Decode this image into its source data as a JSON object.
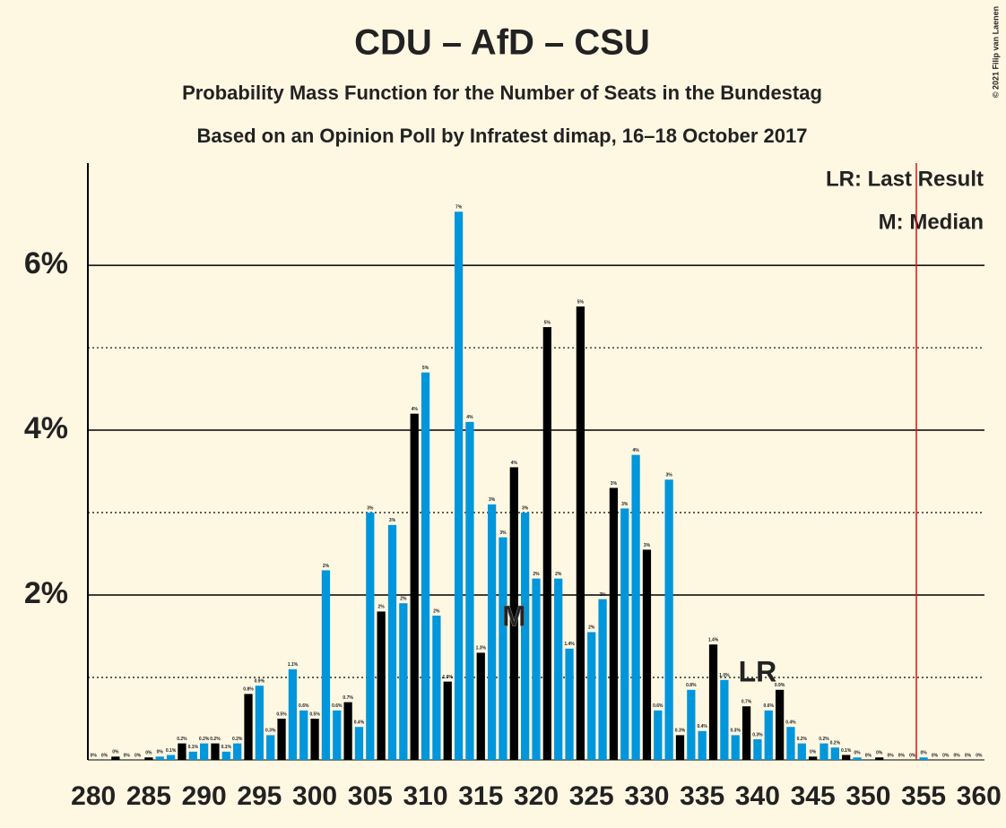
{
  "chart_data": {
    "type": "bar",
    "title": "CDU – AfD – CSU",
    "subtitle": "Probability Mass Function for the Number of Seats in the Bundestag",
    "subtitle2": "Based on an Opinion Poll by Infratest dimap, 16–18 October 2017",
    "copyright": "© 2021 Filip van Laenen",
    "legend_lines": [
      "LR: Last Result",
      "M: Median"
    ],
    "annotations": [
      {
        "text": "M",
        "x": 318
      },
      {
        "text": "LR",
        "x": 340
      }
    ],
    "x": [
      280,
      281,
      282,
      283,
      284,
      285,
      286,
      287,
      288,
      289,
      290,
      291,
      292,
      293,
      294,
      295,
      296,
      297,
      298,
      299,
      300,
      301,
      302,
      303,
      304,
      305,
      306,
      307,
      308,
      309,
      310,
      311,
      312,
      313,
      314,
      315,
      316,
      317,
      318,
      319,
      320,
      321,
      322,
      323,
      324,
      325,
      326,
      327,
      328,
      329,
      330,
      331,
      332,
      333,
      334,
      335,
      336,
      337,
      338,
      339,
      340,
      341,
      342,
      343,
      344,
      345,
      346,
      347,
      348,
      349,
      350,
      351,
      352,
      353,
      354,
      355,
      356,
      357,
      358,
      359,
      360
    ],
    "values": [
      0,
      0,
      0.04,
      0,
      0,
      0.03,
      0.04,
      0.06,
      0.2,
      0.1,
      0.2,
      0.2,
      0.1,
      0.2,
      0.8,
      0.9,
      0.3,
      0.5,
      1.1,
      0.6,
      0.5,
      2.3,
      0.6,
      0.7,
      0.4,
      3.0,
      1.8,
      2.85,
      1.9,
      4.2,
      4.7,
      1.75,
      0.95,
      6.65,
      4.1,
      1.3,
      3.1,
      2.7,
      3.55,
      3.0,
      2.2,
      5.25,
      2.2,
      1.35,
      5.5,
      1.55,
      1.95,
      3.3,
      3.05,
      3.7,
      2.55,
      0.6,
      3.4,
      0.3,
      0.85,
      0.35,
      1.4,
      0.97,
      0.3,
      0.65,
      0.25,
      0.6,
      0.85,
      0.4,
      0.2,
      0.04,
      0.2,
      0.15,
      0.06,
      0.03,
      0,
      0.03,
      0,
      0,
      0,
      0.03,
      0,
      0,
      0,
      0,
      0
    ],
    "value_labels": [
      "0%",
      "0%",
      "0%",
      "0%",
      "0%",
      "0%",
      "0%",
      "0.1%",
      "0.2%",
      "0.1%",
      "0.2%",
      "0.2%",
      "0.1%",
      "0.2%",
      "0.8%",
      "0.9%",
      "0.3%",
      "0.5%",
      "1.1%",
      "0.6%",
      "0.5%",
      "2%",
      "0.6%",
      "0.7%",
      "0.4%",
      "3%",
      "2%",
      "3%",
      "2%",
      "4%",
      "5%",
      "2%",
      "1.0%",
      "7%",
      "4%",
      "1.3%",
      "3%",
      "3%",
      "4%",
      "3%",
      "2%",
      "5%",
      "2%",
      "1.4%",
      "5%",
      "2%",
      "2%",
      "3%",
      "3%",
      "4%",
      "3%",
      "0.6%",
      "3%",
      "0.3%",
      "0.8%",
      "0.4%",
      "1.4%",
      "1.0%",
      "0.3%",
      "0.7%",
      "0.3%",
      "0.6%",
      "0.9%",
      "0.4%",
      "0.2%",
      "0%",
      "0.2%",
      "0.2%",
      "0.1%",
      "0%",
      "0%",
      "0%",
      "0%",
      "0%",
      "0%",
      "0%",
      "0%",
      "0%",
      "0%",
      "0%",
      "0%"
    ],
    "colors": [
      "#0096dc",
      "#0096dc",
      "#000000",
      "#0096dc",
      "#0096dc",
      "#000000",
      "#0096dc",
      "#0096dc",
      "#000000",
      "#0096dc",
      "#0096dc",
      "#000000",
      "#0096dc",
      "#0096dc",
      "#000000",
      "#0096dc",
      "#0096dc",
      "#000000",
      "#0096dc",
      "#0096dc",
      "#000000",
      "#0096dc",
      "#0096dc",
      "#000000",
      "#0096dc",
      "#0096dc",
      "#000000",
      "#0096dc",
      "#0096dc",
      "#000000",
      "#0096dc",
      "#0096dc",
      "#000000",
      "#0096dc",
      "#0096dc",
      "#000000",
      "#0096dc",
      "#0096dc",
      "#000000",
      "#0096dc",
      "#0096dc",
      "#000000",
      "#0096dc",
      "#0096dc",
      "#000000",
      "#0096dc",
      "#0096dc",
      "#000000",
      "#0096dc",
      "#0096dc",
      "#000000",
      "#0096dc",
      "#0096dc",
      "#000000",
      "#0096dc",
      "#0096dc",
      "#000000",
      "#0096dc",
      "#0096dc",
      "#000000",
      "#0096dc",
      "#0096dc",
      "#000000",
      "#0096dc",
      "#0096dc",
      "#000000",
      "#0096dc",
      "#0096dc",
      "#000000",
      "#0096dc",
      "#0096dc",
      "#000000",
      "#0096dc",
      "#0096dc",
      "#000000",
      "#0096dc",
      "#0096dc",
      "#000000",
      "#0096dc",
      "#0096dc",
      "#000000"
    ],
    "xlim": [
      279.5,
      360.5
    ],
    "xticks": [
      280,
      285,
      290,
      295,
      300,
      305,
      310,
      315,
      320,
      325,
      330,
      335,
      340,
      345,
      350,
      355,
      360
    ],
    "ylim": [
      0,
      7.24
    ],
    "yticks": [
      {
        "value": 2,
        "label": "2%"
      },
      {
        "value": 4,
        "label": "4%"
      },
      {
        "value": 6,
        "label": "6%"
      }
    ],
    "yminorticks": [
      1,
      3,
      5
    ],
    "grid": true
  }
}
